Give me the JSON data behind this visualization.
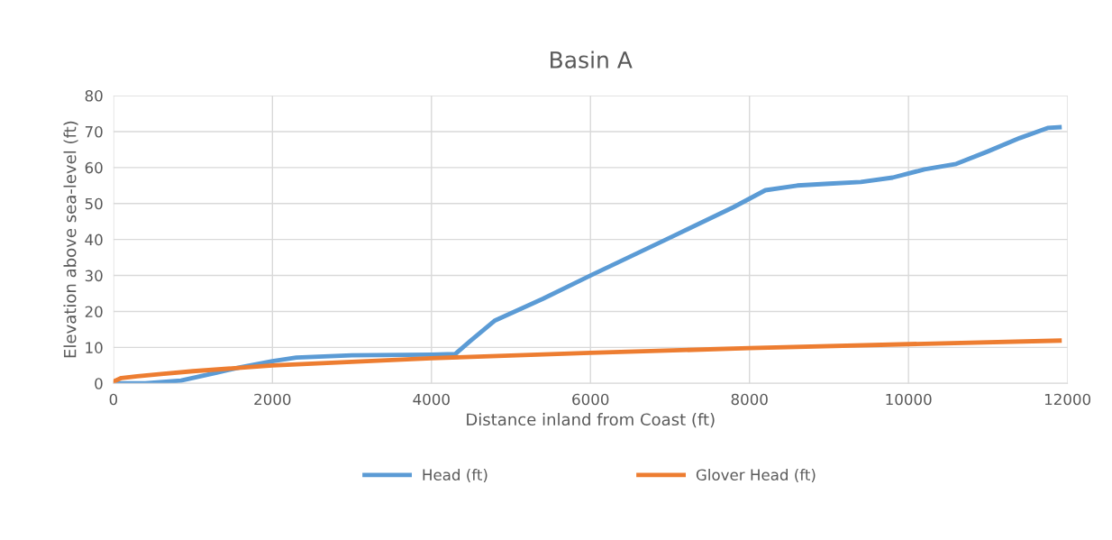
{
  "chart_data": {
    "type": "line",
    "title": "Basin A",
    "xlabel": "Distance inland from Coast (ft)",
    "ylabel": "Elevation above sea-level (ft)",
    "xlim": [
      0,
      12000
    ],
    "xticks": [
      0,
      2000,
      4000,
      6000,
      8000,
      10000,
      12000
    ],
    "ylim": [
      0,
      80
    ],
    "yticks": [
      0,
      10,
      20,
      30,
      40,
      50,
      60,
      70,
      80
    ],
    "grid": true,
    "legend": "bottom",
    "marker": "none",
    "line_style": "solid",
    "series": [
      {
        "name": "Head (ft)",
        "color": "#5b9bd5",
        "x": [
          0,
          400,
          850,
          1300,
          1600,
          2000,
          2300,
          3000,
          4000,
          4300,
          4500,
          4800,
          5400,
          6000,
          7000,
          7800,
          8200,
          8600,
          9000,
          9400,
          9800,
          10200,
          10600,
          11000,
          11400,
          11750,
          11900
        ],
        "values": [
          0,
          0,
          0.8,
          3,
          4.5,
          6.2,
          7.2,
          7.8,
          8,
          8.2,
          12,
          17.5,
          23.5,
          30,
          40.5,
          49,
          53.7,
          55,
          55.5,
          56,
          57.2,
          59.5,
          61,
          64.5,
          68.2,
          71,
          71.2
        ]
      },
      {
        "name": "Glover Head (ft)",
        "color": "#ed7d31",
        "x": [
          0,
          100,
          300,
          600,
          1000,
          2000,
          4000,
          6000,
          8000,
          10000,
          11900
        ],
        "values": [
          0.5,
          1.5,
          2,
          2.6,
          3.4,
          5,
          7,
          8.5,
          9.8,
          10.9,
          11.9
        ]
      }
    ]
  }
}
